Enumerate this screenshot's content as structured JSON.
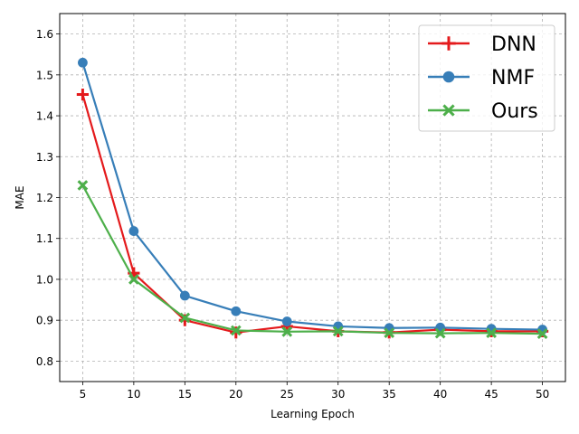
{
  "chart_data": {
    "type": "line",
    "title": "",
    "xlabel": "Learning Epoch",
    "ylabel": "MAE",
    "x": [
      5,
      10,
      15,
      20,
      25,
      30,
      35,
      40,
      45,
      50
    ],
    "xlim": [
      2.75,
      52.25
    ],
    "ylim": [
      0.75,
      1.65
    ],
    "xticks": [
      5,
      10,
      15,
      20,
      25,
      30,
      35,
      40,
      45,
      50
    ],
    "yticks": [
      0.8,
      0.9,
      1.0,
      1.1,
      1.2,
      1.3,
      1.4,
      1.5,
      1.6
    ],
    "grid": true,
    "legend_position": "top-right",
    "series": [
      {
        "name": "DNN",
        "color": "#e41a1c",
        "marker": "plus",
        "values": [
          1.452,
          1.015,
          0.9,
          0.87,
          0.885,
          0.873,
          0.87,
          0.877,
          0.873,
          0.873
        ]
      },
      {
        "name": "NMF",
        "color": "#377eb8",
        "marker": "circle",
        "values": [
          1.53,
          1.118,
          0.96,
          0.922,
          0.897,
          0.885,
          0.881,
          0.882,
          0.879,
          0.877
        ]
      },
      {
        "name": "Ours",
        "color": "#4daf4a",
        "marker": "x",
        "values": [
          1.23,
          1.0,
          0.906,
          0.875,
          0.872,
          0.873,
          0.869,
          0.868,
          0.869,
          0.867
        ]
      }
    ]
  }
}
